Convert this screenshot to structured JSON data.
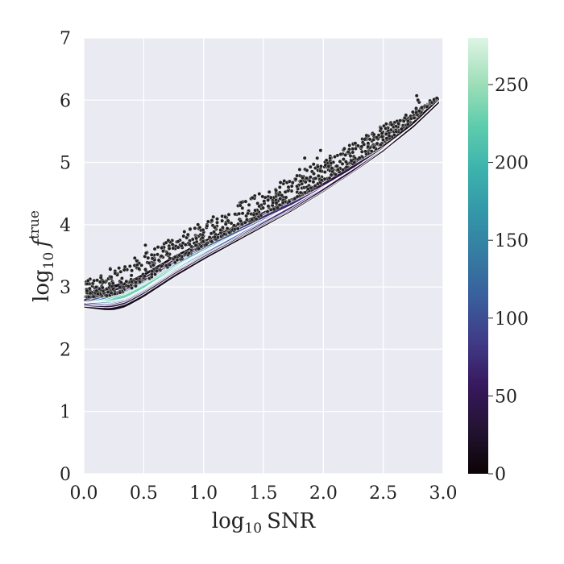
{
  "chart_data": {
    "type": "contour_scatter",
    "xlabel": "log10 SNR",
    "ylabel": "log10 f^true",
    "xlabel_parts": {
      "base": "log",
      "sub": "10",
      "rest": "SNR"
    },
    "ylabel_parts": {
      "base": "log",
      "sub": "10",
      "f": "f",
      "sup": "true"
    },
    "xlim": [
      0.0,
      3.0
    ],
    "ylim": [
      0,
      7
    ],
    "x_ticks": [
      0.0,
      0.5,
      1.0,
      1.5,
      2.0,
      2.5,
      3.0
    ],
    "x_tick_labels": [
      "0.0",
      "0.5",
      "1.0",
      "1.5",
      "2.0",
      "2.5",
      "3.0"
    ],
    "y_ticks": [
      0,
      1,
      2,
      3,
      4,
      5,
      6,
      7
    ],
    "y_tick_labels": [
      "0",
      "1",
      "2",
      "3",
      "4",
      "5",
      "6",
      "7"
    ],
    "grid": true,
    "colorbar": {
      "range": [
        0,
        280
      ],
      "ticks": [
        0,
        50,
        100,
        150,
        200,
        250
      ],
      "tick_labels": [
        "0",
        "50",
        "100",
        "150",
        "200",
        "250"
      ],
      "colormap": "mako"
    },
    "density_ridge": [
      {
        "x": 0.0,
        "y": 2.75,
        "density": 60
      },
      {
        "x": 0.2,
        "y": 2.78,
        "density": 160
      },
      {
        "x": 0.35,
        "y": 2.85,
        "density": 240
      },
      {
        "x": 0.5,
        "y": 3.0,
        "density": 220
      },
      {
        "x": 0.75,
        "y": 3.3,
        "density": 160
      },
      {
        "x": 1.0,
        "y": 3.57,
        "density": 120
      },
      {
        "x": 1.25,
        "y": 3.82,
        "density": 95
      },
      {
        "x": 1.5,
        "y": 4.07,
        "density": 75
      },
      {
        "x": 1.75,
        "y": 4.32,
        "density": 55
      },
      {
        "x": 2.0,
        "y": 4.6,
        "density": 40
      },
      {
        "x": 2.25,
        "y": 4.9,
        "density": 30
      },
      {
        "x": 2.5,
        "y": 5.22,
        "density": 22
      },
      {
        "x": 2.75,
        "y": 5.6,
        "density": 15
      },
      {
        "x": 2.97,
        "y": 6.0,
        "density": 8
      }
    ],
    "outlier_band_upper_edge": [
      {
        "x": 0.0,
        "y": 3.1
      },
      {
        "x": 0.5,
        "y": 3.55
      },
      {
        "x": 1.0,
        "y": 4.05
      },
      {
        "x": 1.5,
        "y": 4.55
      },
      {
        "x": 2.0,
        "y": 5.05
      },
      {
        "x": 2.5,
        "y": 5.6
      },
      {
        "x": 2.95,
        "y": 6.0
      }
    ]
  },
  "style": {
    "plot_background": "#eaeaf2",
    "grid_color": "#ffffff",
    "contour_line_color": "#ffffff",
    "scatter_color": "#222222"
  }
}
